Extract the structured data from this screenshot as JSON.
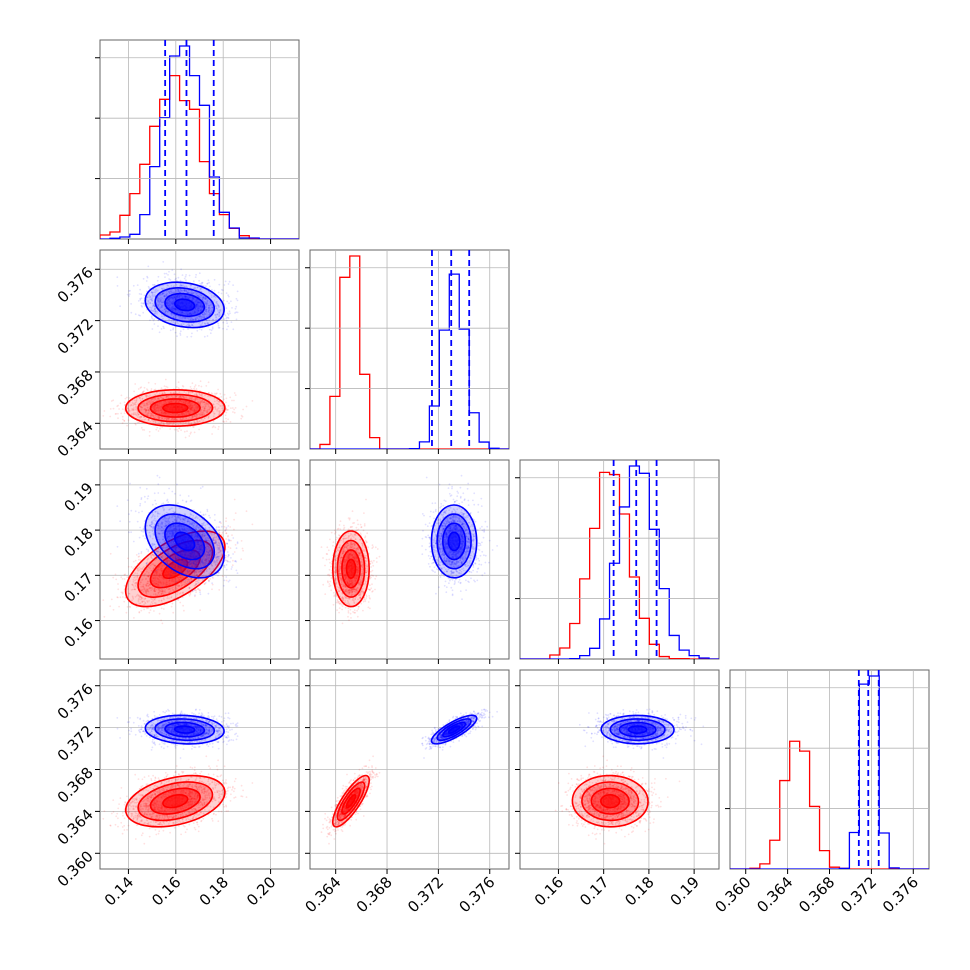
{
  "chart_data": {
    "type": "corner",
    "params": 4,
    "series": [
      {
        "color": "#ff0000"
      },
      {
        "color": "#0000ff"
      }
    ],
    "ranges": [
      [
        0.128,
        0.212
      ],
      [
        0.362,
        0.3775
      ],
      [
        0.1515,
        0.1955
      ],
      [
        0.3585,
        0.3775
      ]
    ],
    "ticks": [
      [
        "0.14",
        "0.16",
        "0.18",
        "0.20"
      ],
      [
        "0.364",
        "0.368",
        "0.372",
        "0.376"
      ],
      [
        "0.16",
        "0.17",
        "0.18",
        "0.19"
      ],
      [
        "0.360",
        "0.364",
        "0.368",
        "0.372",
        "0.376"
      ]
    ],
    "quantiles": [
      [
        0.1555,
        0.1645,
        0.176
      ],
      [
        0.3715,
        0.373,
        0.3744
      ],
      [
        0.1722,
        0.1772,
        0.1817
      ],
      [
        0.3708,
        0.3717,
        0.3727
      ]
    ],
    "distributions": {
      "red": {
        "mean": [
          0.16,
          0.3652,
          0.1715,
          0.365
        ],
        "sd": [
          0.0105,
          0.0007,
          0.0042,
          0.0012
        ],
        "corr": [
          [
            1.0,
            0.0,
            0.6,
            0.35
          ],
          [
            0.0,
            1.0,
            0.0,
            0.8
          ],
          [
            0.6,
            0.0,
            1.0,
            0.0
          ],
          [
            0.35,
            0.8,
            0.0,
            1.0
          ]
        ]
      },
      "blue": {
        "mean": [
          0.164,
          0.3732,
          0.1775,
          0.3718
        ],
        "sd": [
          0.0085,
          0.0009,
          0.004,
          0.0007
        ],
        "corr": [
          [
            1.0,
            -0.2,
            -0.4,
            -0.1
          ],
          [
            -0.2,
            1.0,
            0.0,
            0.8
          ],
          [
            -0.4,
            0.0,
            1.0,
            0.0
          ],
          [
            -0.1,
            0.8,
            0.0,
            1.0
          ]
        ]
      }
    },
    "grid": true
  }
}
